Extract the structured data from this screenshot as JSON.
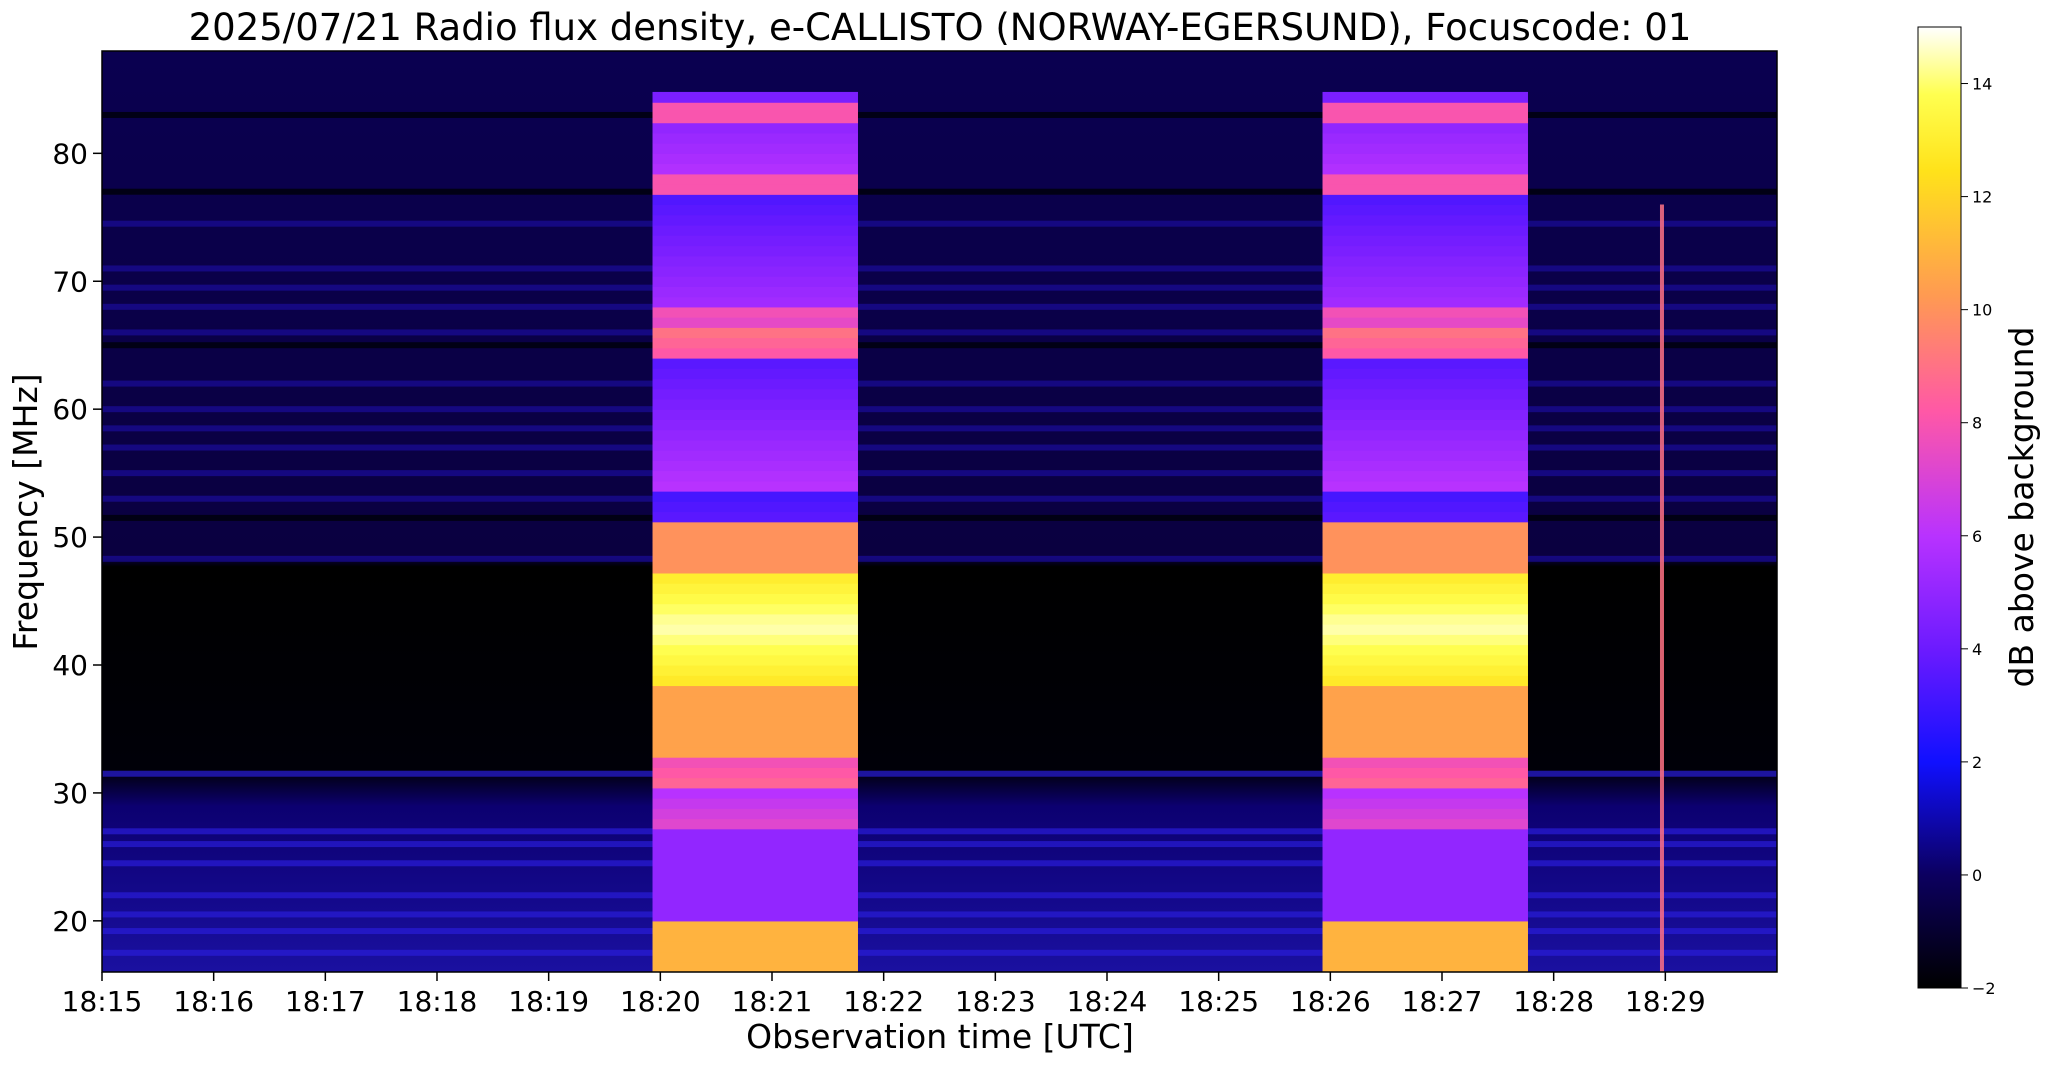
{
  "chart_data": {
    "type": "heatmap",
    "title": "2025/07/21  Radio flux density, e-CALLISTO (NORWAY-EGERSUND), Focuscode: 01",
    "xlabel": "Observation time [UTC]",
    "ylabel": "Frequency [MHz]",
    "x_ticks": [
      "18:15",
      "18:16",
      "18:17",
      "18:18",
      "18:19",
      "18:20",
      "18:21",
      "18:22",
      "18:23",
      "18:24",
      "18:25",
      "18:26",
      "18:27",
      "18:28",
      "18:29"
    ],
    "y_ticks": [
      20,
      30,
      40,
      50,
      60,
      70,
      80
    ],
    "xlim_minutes": [
      0,
      15
    ],
    "ylim": [
      16,
      88
    ],
    "grid": false,
    "colorbar": {
      "label": "dB above background",
      "range": [
        -2,
        15
      ],
      "ticks": [
        -2,
        0,
        2,
        4,
        6,
        8,
        10,
        12,
        14
      ],
      "colormap": "gnuplot2"
    },
    "calibration_blocks": [
      {
        "start_minute": 4.93,
        "end_minute": 6.77,
        "peak_db": 15
      },
      {
        "start_minute": 10.93,
        "end_minute": 12.77,
        "peak_db": 15
      }
    ],
    "bursts": [
      {
        "minute": 13.97,
        "freq_from": 16,
        "freq_to": 76,
        "peak_db": 9
      }
    ]
  }
}
